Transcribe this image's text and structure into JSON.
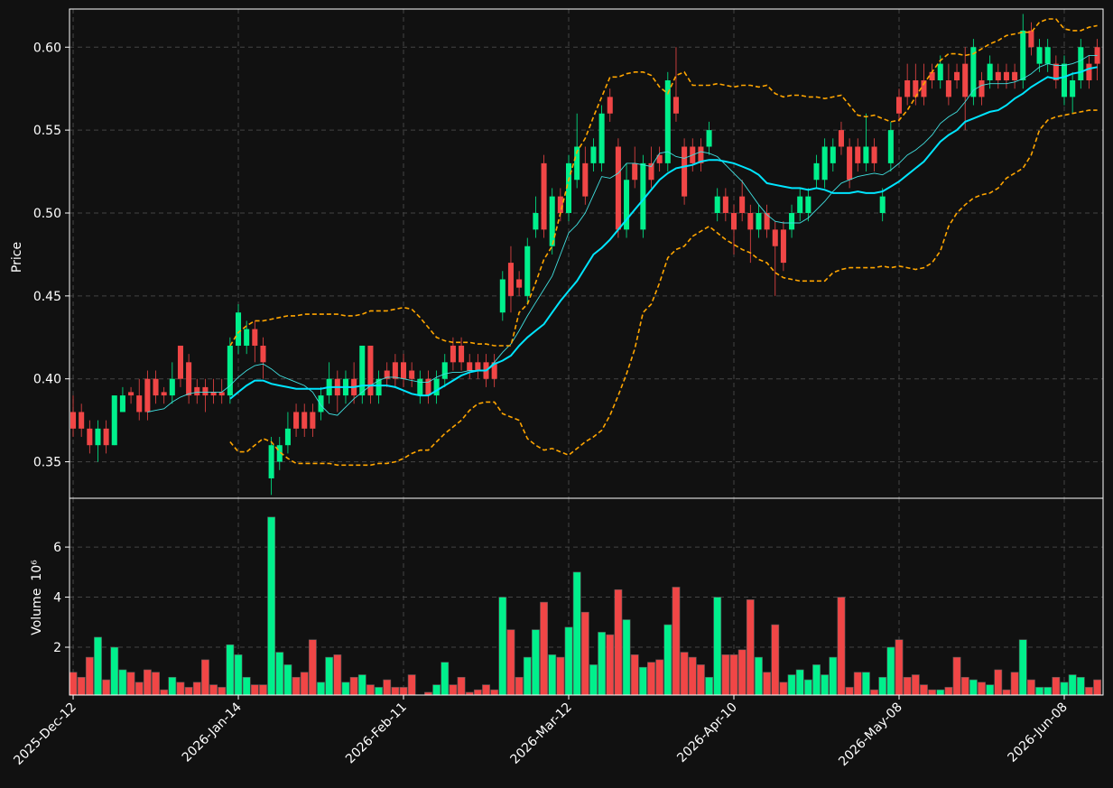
{
  "chart_data": {
    "type": "candlestick",
    "ylabel": "Price",
    "volume_label": "Volume",
    "volume_scale": "10⁶",
    "xlim": [
      -0.44,
      124.7
    ],
    "xticks": [
      {
        "value": 0,
        "label": "2025-Dec-12"
      },
      {
        "value": 20,
        "label": "2026-Jan-14"
      },
      {
        "value": 40,
        "label": "2026-Feb-11"
      },
      {
        "value": 60,
        "label": "2026-Mar-12"
      },
      {
        "value": 80,
        "label": "2026-Apr-10"
      },
      {
        "value": 100,
        "label": "2026-May-08"
      },
      {
        "value": 120,
        "label": "2026-Jun-08"
      }
    ],
    "ylim": [
      0.328,
      0.623
    ],
    "yticks": [
      {
        "value": 0.35,
        "label": "0.35"
      },
      {
        "value": 0.4,
        "label": "0.40"
      },
      {
        "value": 0.45,
        "label": "0.45"
      },
      {
        "value": 0.5,
        "label": "0.50"
      },
      {
        "value": 0.55,
        "label": "0.55"
      },
      {
        "value": 0.6,
        "label": "0.60"
      }
    ],
    "volume_ylim": [
      0.09,
      7.95
    ],
    "volume_yticks": [
      2,
      4,
      6
    ],
    "grid": true,
    "up_color": "#00f08c",
    "down_color": "#f04646",
    "open": [
      0.38,
      0.38,
      0.37,
      0.36,
      0.37,
      0.36,
      0.38,
      0.392,
      0.39,
      0.4,
      0.4,
      0.392,
      0.39,
      0.42,
      0.41,
      0.395,
      0.395,
      0.392,
      0.392,
      0.39,
      0.42,
      0.42,
      0.43,
      0.42,
      0.34,
      0.35,
      0.36,
      0.38,
      0.38,
      0.38,
      0.38,
      0.39,
      0.4,
      0.39,
      0.4,
      0.39,
      0.42,
      0.39,
      0.405,
      0.41,
      0.41,
      0.405,
      0.39,
      0.4,
      0.39,
      0.4,
      0.42,
      0.42,
      0.41,
      0.41,
      0.41,
      0.41,
      0.44,
      0.47,
      0.46,
      0.45,
      0.49,
      0.53,
      0.48,
      0.51,
      0.5,
      0.52,
      0.53,
      0.53,
      0.53,
      0.57,
      0.54,
      0.49,
      0.53,
      0.49,
      0.53,
      0.535,
      0.53,
      0.57,
      0.54,
      0.54,
      0.54,
      0.54,
      0.5,
      0.51,
      0.5,
      0.51,
      0.5,
      0.49,
      0.5,
      0.49,
      0.49,
      0.49,
      0.5,
      0.5,
      0.52,
      0.52,
      0.53,
      0.55,
      0.54,
      0.54,
      0.53,
      0.54,
      0.5,
      0.53,
      0.57,
      0.58,
      0.58,
      0.58,
      0.585,
      0.58,
      0.58,
      0.585,
      0.59,
      0.57,
      0.58,
      0.58,
      0.585,
      0.585,
      0.585,
      0.58,
      0.61,
      0.59,
      0.59,
      0.59,
      0.57,
      0.57,
      0.58,
      0.59,
      0.6
    ],
    "high": [
      0.39,
      0.385,
      0.375,
      0.375,
      0.375,
      0.39,
      0.395,
      0.395,
      0.4,
      0.405,
      0.405,
      0.395,
      0.41,
      0.42,
      0.415,
      0.4,
      0.4,
      0.4,
      0.4,
      0.425,
      0.445,
      0.435,
      0.435,
      0.425,
      0.365,
      0.365,
      0.38,
      0.385,
      0.385,
      0.385,
      0.395,
      0.41,
      0.405,
      0.405,
      0.41,
      0.42,
      0.42,
      0.405,
      0.41,
      0.415,
      0.415,
      0.41,
      0.405,
      0.405,
      0.405,
      0.415,
      0.425,
      0.425,
      0.415,
      0.415,
      0.415,
      0.415,
      0.465,
      0.48,
      0.465,
      0.485,
      0.51,
      0.535,
      0.515,
      0.515,
      0.535,
      0.56,
      0.54,
      0.545,
      0.565,
      0.575,
      0.545,
      0.53,
      0.54,
      0.535,
      0.54,
      0.54,
      0.585,
      0.6,
      0.545,
      0.545,
      0.545,
      0.555,
      0.515,
      0.515,
      0.505,
      0.52,
      0.505,
      0.505,
      0.505,
      0.495,
      0.495,
      0.505,
      0.515,
      0.515,
      0.535,
      0.545,
      0.545,
      0.555,
      0.545,
      0.545,
      0.56,
      0.545,
      0.515,
      0.555,
      0.575,
      0.59,
      0.59,
      0.59,
      0.59,
      0.595,
      0.59,
      0.59,
      0.6,
      0.605,
      0.585,
      0.595,
      0.59,
      0.59,
      0.59,
      0.62,
      0.615,
      0.605,
      0.605,
      0.595,
      0.595,
      0.585,
      0.605,
      0.595,
      0.605
    ],
    "low": [
      0.365,
      0.365,
      0.355,
      0.35,
      0.355,
      0.36,
      0.38,
      0.385,
      0.375,
      0.375,
      0.385,
      0.385,
      0.385,
      0.395,
      0.385,
      0.385,
      0.38,
      0.385,
      0.385,
      0.385,
      0.415,
      0.415,
      0.41,
      0.4,
      0.33,
      0.345,
      0.355,
      0.365,
      0.365,
      0.365,
      0.375,
      0.385,
      0.38,
      0.385,
      0.385,
      0.385,
      0.385,
      0.385,
      0.395,
      0.395,
      0.395,
      0.395,
      0.385,
      0.385,
      0.385,
      0.395,
      0.405,
      0.405,
      0.4,
      0.4,
      0.395,
      0.395,
      0.435,
      0.44,
      0.45,
      0.445,
      0.485,
      0.485,
      0.475,
      0.495,
      0.495,
      0.515,
      0.505,
      0.525,
      0.525,
      0.555,
      0.485,
      0.485,
      0.515,
      0.485,
      0.515,
      0.525,
      0.525,
      0.555,
      0.505,
      0.525,
      0.525,
      0.535,
      0.495,
      0.495,
      0.475,
      0.495,
      0.47,
      0.485,
      0.485,
      0.45,
      0.465,
      0.485,
      0.495,
      0.495,
      0.515,
      0.515,
      0.525,
      0.535,
      0.515,
      0.525,
      0.525,
      0.525,
      0.495,
      0.525,
      0.555,
      0.565,
      0.565,
      0.565,
      0.575,
      0.575,
      0.565,
      0.575,
      0.55,
      0.565,
      0.565,
      0.575,
      0.575,
      0.575,
      0.575,
      0.575,
      0.595,
      0.585,
      0.585,
      0.575,
      0.565,
      0.56,
      0.575,
      0.575,
      0.58
    ],
    "close": [
      0.37,
      0.37,
      0.36,
      0.37,
      0.36,
      0.39,
      0.39,
      0.39,
      0.38,
      0.38,
      0.39,
      0.39,
      0.4,
      0.4,
      0.39,
      0.39,
      0.39,
      0.39,
      0.39,
      0.42,
      0.44,
      0.43,
      0.42,
      0.41,
      0.36,
      0.36,
      0.37,
      0.37,
      0.37,
      0.37,
      0.39,
      0.4,
      0.39,
      0.4,
      0.39,
      0.42,
      0.39,
      0.4,
      0.4,
      0.4,
      0.4,
      0.4,
      0.4,
      0.39,
      0.4,
      0.41,
      0.41,
      0.41,
      0.405,
      0.405,
      0.4,
      0.4,
      0.46,
      0.45,
      0.455,
      0.48,
      0.5,
      0.49,
      0.51,
      0.5,
      0.53,
      0.54,
      0.51,
      0.54,
      0.56,
      0.56,
      0.49,
      0.52,
      0.52,
      0.53,
      0.52,
      0.53,
      0.58,
      0.56,
      0.51,
      0.53,
      0.53,
      0.55,
      0.51,
      0.5,
      0.49,
      0.5,
      0.49,
      0.5,
      0.49,
      0.48,
      0.47,
      0.5,
      0.51,
      0.51,
      0.53,
      0.54,
      0.54,
      0.54,
      0.52,
      0.53,
      0.54,
      0.53,
      0.51,
      0.55,
      0.56,
      0.57,
      0.57,
      0.57,
      0.58,
      0.59,
      0.57,
      0.58,
      0.57,
      0.6,
      0.57,
      0.59,
      0.58,
      0.58,
      0.58,
      0.61,
      0.6,
      0.6,
      0.6,
      0.58,
      0.59,
      0.58,
      0.6,
      0.58,
      0.59
    ],
    "volume": [
      1.0,
      0.8,
      1.6,
      2.4,
      0.7,
      2.0,
      1.1,
      1.0,
      0.6,
      1.1,
      1.0,
      0.3,
      0.8,
      0.6,
      0.4,
      0.6,
      1.5,
      0.5,
      0.4,
      2.1,
      1.7,
      0.8,
      0.5,
      0.5,
      7.2,
      1.8,
      1.3,
      0.8,
      1.0,
      2.3,
      0.6,
      1.6,
      1.7,
      0.6,
      0.8,
      0.9,
      0.5,
      0.4,
      0.7,
      0.4,
      0.4,
      0.9,
      0.1,
      0.2,
      0.5,
      1.4,
      0.5,
      0.8,
      0.2,
      0.3,
      0.5,
      0.3,
      4.0,
      2.7,
      0.8,
      1.6,
      2.7,
      3.8,
      1.7,
      1.6,
      2.8,
      5.0,
      3.4,
      1.3,
      2.6,
      2.5,
      4.3,
      3.1,
      1.7,
      1.2,
      1.4,
      1.5,
      2.9,
      4.4,
      1.8,
      1.6,
      1.3,
      0.8,
      4.0,
      1.7,
      1.7,
      1.9,
      3.9,
      1.6,
      1.0,
      2.9,
      0.6,
      0.9,
      1.1,
      0.7,
      1.3,
      0.9,
      1.6,
      4.0,
      0.4,
      1.0,
      1.0,
      0.3,
      0.8,
      2.0,
      2.3,
      0.8,
      0.9,
      0.5,
      0.3,
      0.3,
      0.4,
      1.6,
      0.8,
      0.7,
      0.6,
      0.5,
      1.1,
      0.3,
      1.0,
      2.3,
      0.7,
      0.4,
      0.4,
      0.8,
      0.6,
      0.9,
      0.8,
      0.4,
      0.7
    ],
    "lines": [
      {
        "color": "#40e0e0",
        "style": "solid",
        "values": [
          null,
          null,
          null,
          null,
          null,
          null,
          null,
          null,
          null,
          0.38,
          0.381,
          0.382,
          0.386,
          0.389,
          0.391,
          0.392,
          0.392,
          0.392,
          0.392,
          0.396,
          0.401,
          0.405,
          0.408,
          0.409,
          0.406,
          0.402,
          0.4,
          0.398,
          0.396,
          0.392,
          0.384,
          0.379,
          0.378,
          0.383,
          0.388,
          0.392,
          0.396,
          0.399,
          0.401,
          0.401,
          0.4,
          0.399,
          0.398,
          0.398,
          0.401,
          0.403,
          0.404,
          0.404,
          0.405,
          0.405,
          0.405,
          0.41,
          0.416,
          0.421,
          0.429,
          0.438,
          0.446,
          0.454,
          0.462,
          0.475,
          0.488,
          0.493,
          0.5,
          0.511,
          0.522,
          0.521,
          0.524,
          0.53,
          0.53,
          0.529,
          0.528,
          0.536,
          0.537,
          0.534,
          0.533,
          0.535,
          0.537,
          0.536,
          0.534,
          0.529,
          0.524,
          0.519,
          0.512,
          0.505,
          0.499,
          0.495,
          0.494,
          0.494,
          0.494,
          0.497,
          0.502,
          0.507,
          0.513,
          0.518,
          0.52,
          0.522,
          0.523,
          0.524,
          0.523,
          0.526,
          0.53,
          0.535,
          0.538,
          0.542,
          0.547,
          0.554,
          0.558,
          0.561,
          0.567,
          0.574,
          0.577,
          0.578,
          0.578,
          0.578,
          0.579,
          0.581,
          0.584,
          0.588,
          0.59,
          0.589,
          0.589,
          0.59,
          0.592,
          0.595,
          0.595
        ]
      },
      {
        "color": "#00e5ff",
        "style": "thick",
        "values": [
          null,
          null,
          null,
          null,
          null,
          null,
          null,
          null,
          null,
          null,
          null,
          null,
          null,
          null,
          null,
          null,
          null,
          null,
          null,
          0.388,
          0.392,
          0.396,
          0.399,
          0.399,
          0.397,
          0.396,
          0.395,
          0.394,
          0.394,
          0.394,
          0.394,
          0.395,
          0.395,
          0.395,
          0.395,
          0.396,
          0.396,
          0.396,
          0.396,
          0.395,
          0.393,
          0.391,
          0.39,
          0.39,
          0.393,
          0.396,
          0.399,
          0.402,
          0.404,
          0.405,
          0.405,
          0.409,
          0.411,
          0.414,
          0.42,
          0.425,
          0.429,
          0.433,
          0.44,
          0.447,
          0.453,
          0.459,
          0.467,
          0.475,
          0.479,
          0.484,
          0.49,
          0.496,
          0.502,
          0.508,
          0.514,
          0.52,
          0.524,
          0.527,
          0.528,
          0.529,
          0.531,
          0.532,
          0.532,
          0.531,
          0.53,
          0.528,
          0.526,
          0.523,
          0.518,
          0.517,
          0.516,
          0.515,
          0.515,
          0.514,
          0.515,
          0.514,
          0.512,
          0.512,
          0.512,
          0.513,
          0.512,
          0.512,
          0.513,
          0.516,
          0.519,
          0.523,
          0.527,
          0.531,
          0.537,
          0.543,
          0.547,
          0.55,
          0.555,
          0.557,
          0.559,
          0.561,
          0.562,
          0.565,
          0.569,
          0.572,
          0.576,
          0.579,
          0.582,
          0.581,
          0.582,
          0.584,
          0.585,
          0.587,
          0.588
        ]
      },
      {
        "color": "#ffa500",
        "style": "dashed",
        "values": [
          null,
          null,
          null,
          null,
          null,
          null,
          null,
          null,
          null,
          null,
          null,
          null,
          null,
          null,
          null,
          null,
          null,
          null,
          null,
          0.42,
          0.428,
          0.432,
          0.435,
          0.435,
          0.436,
          0.437,
          0.438,
          0.438,
          0.439,
          0.439,
          0.439,
          0.439,
          0.439,
          0.438,
          0.438,
          0.439,
          0.441,
          0.441,
          0.441,
          0.442,
          0.443,
          0.442,
          0.437,
          0.431,
          0.425,
          0.423,
          0.422,
          0.422,
          0.422,
          0.421,
          0.421,
          0.42,
          0.42,
          0.42,
          0.44,
          0.445,
          0.458,
          0.472,
          0.48,
          0.5,
          0.52,
          0.537,
          0.545,
          0.558,
          0.57,
          0.582,
          0.582,
          0.584,
          0.585,
          0.585,
          0.583,
          0.576,
          0.572,
          0.583,
          0.585,
          0.577,
          0.577,
          0.577,
          0.578,
          0.577,
          0.576,
          0.577,
          0.577,
          0.576,
          0.577,
          0.572,
          0.57,
          0.571,
          0.571,
          0.57,
          0.57,
          0.569,
          0.57,
          0.571,
          0.565,
          0.559,
          0.558,
          0.559,
          0.557,
          0.555,
          0.556,
          0.562,
          0.57,
          0.578,
          0.585,
          0.592,
          0.596,
          0.596,
          0.595,
          0.596,
          0.599,
          0.602,
          0.604,
          0.607,
          0.608,
          0.609,
          0.609,
          0.615,
          0.617,
          0.617,
          0.611,
          0.61,
          0.61,
          0.612,
          0.613
        ]
      },
      {
        "color": "#ffa500",
        "style": "dashed",
        "values": [
          null,
          null,
          null,
          null,
          null,
          null,
          null,
          null,
          null,
          null,
          null,
          null,
          null,
          null,
          null,
          null,
          null,
          null,
          null,
          0.362,
          0.356,
          0.356,
          0.36,
          0.364,
          0.362,
          0.356,
          0.352,
          0.349,
          0.349,
          0.349,
          0.349,
          0.349,
          0.348,
          0.348,
          0.348,
          0.348,
          0.348,
          0.349,
          0.349,
          0.35,
          0.352,
          0.355,
          0.357,
          0.357,
          0.362,
          0.367,
          0.371,
          0.375,
          0.381,
          0.385,
          0.386,
          0.386,
          0.379,
          0.377,
          0.375,
          0.364,
          0.36,
          0.357,
          0.358,
          0.356,
          0.354,
          0.358,
          0.362,
          0.365,
          0.369,
          0.378,
          0.39,
          0.403,
          0.418,
          0.44,
          0.445,
          0.458,
          0.473,
          0.478,
          0.48,
          0.486,
          0.489,
          0.492,
          0.488,
          0.484,
          0.481,
          0.478,
          0.476,
          0.472,
          0.47,
          0.464,
          0.461,
          0.46,
          0.459,
          0.459,
          0.459,
          0.459,
          0.464,
          0.466,
          0.467,
          0.467,
          0.467,
          0.467,
          0.468,
          0.467,
          0.468,
          0.467,
          0.466,
          0.467,
          0.47,
          0.477,
          0.492,
          0.5,
          0.505,
          0.509,
          0.511,
          0.512,
          0.515,
          0.521,
          0.524,
          0.527,
          0.535,
          0.55,
          0.556,
          0.558,
          0.559,
          0.56,
          0.561,
          0.562,
          0.562
        ]
      }
    ]
  }
}
